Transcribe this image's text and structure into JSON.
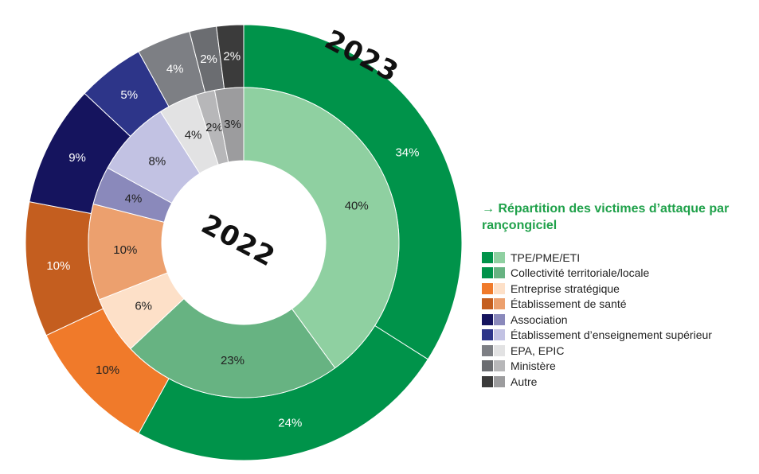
{
  "chart_data": {
    "type": "pie",
    "title": "→ Répartition des victimes d’attaque par rançongiciel",
    "legend_position": "right",
    "categories": [
      "TPE/PME/ETI",
      "Collectivité territoriale/locale",
      "Entreprise stratégique",
      "Établissement de santé",
      "Association",
      "Établissement d’enseignement supérieur",
      "EPA, EPIC",
      "Ministère",
      "Autre"
    ],
    "series": [
      {
        "name": "2023",
        "ring": "outer",
        "values": [
          34,
          24,
          10,
          10,
          9,
          5,
          4,
          2,
          2
        ],
        "colors": [
          "#00934a",
          "#00934a",
          "#f07a2a",
          "#c45e1f",
          "#15145e",
          "#2d3589",
          "#7d7f84",
          "#6b6d71",
          "#3b3b3b"
        ]
      },
      {
        "name": "2022",
        "ring": "inner",
        "values": [
          40,
          23,
          6,
          10,
          4,
          8,
          4,
          2,
          3
        ],
        "colors": [
          "#8fd0a1",
          "#67b382",
          "#fde0c8",
          "#eca06e",
          "#8a89bb",
          "#c2c2e3",
          "#e2e2e3",
          "#b7b7b9",
          "#9c9c9e"
        ]
      }
    ]
  }
}
